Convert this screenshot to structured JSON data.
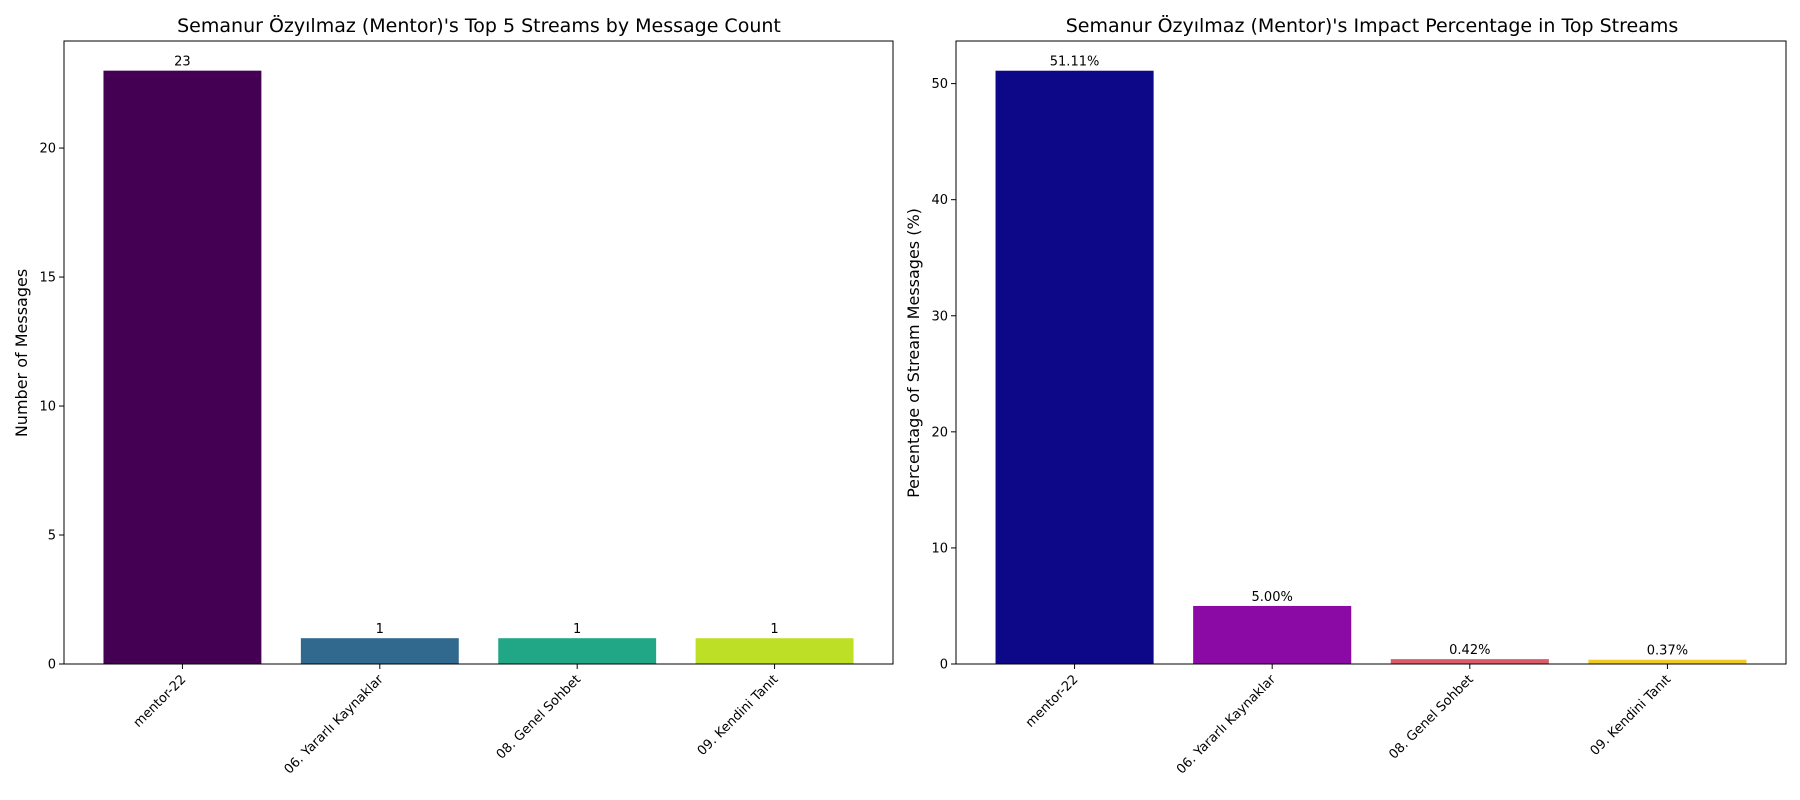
{
  "chart_data": [
    {
      "type": "bar",
      "title": "Semanur Özyılmaz (Mentor)'s Top 5 Streams by Message Count",
      "xlabel": "",
      "ylabel": "Number of Messages",
      "categories": [
        "mentor-22",
        "06. Yararlı Kaynaklar",
        "08. Genel Sohbet",
        "09. Kendini Tanıt"
      ],
      "values": [
        23,
        1,
        1,
        1
      ],
      "value_labels": [
        "23",
        "1",
        "1",
        "1"
      ],
      "colors": [
        "#440154",
        "#31688e",
        "#21a785",
        "#bddf26"
      ],
      "ylim": [
        0,
        24.15
      ],
      "yticks": [
        0,
        5,
        10,
        15,
        20
      ],
      "grid": false,
      "legend": "none"
    },
    {
      "type": "bar",
      "title": "Semanur Özyılmaz (Mentor)'s Impact Percentage in Top Streams",
      "xlabel": "",
      "ylabel": "Percentage of Stream Messages (%)",
      "categories": [
        "mentor-22",
        "06. Yararlı Kaynaklar",
        "08. Genel Sohbet",
        "09. Kendini Tanıt"
      ],
      "values": [
        51.11,
        5.0,
        0.42,
        0.37
      ],
      "value_labels": [
        "51.11%",
        "5.00%",
        "0.42%",
        "0.37%"
      ],
      "colors": [
        "#0d0887",
        "#8b0aa5",
        "#db5c68",
        "#f0cb24"
      ],
      "ylim": [
        0,
        53.67
      ],
      "yticks": [
        0,
        10,
        20,
        30,
        40,
        50
      ],
      "grid": false,
      "legend": "none"
    }
  ]
}
